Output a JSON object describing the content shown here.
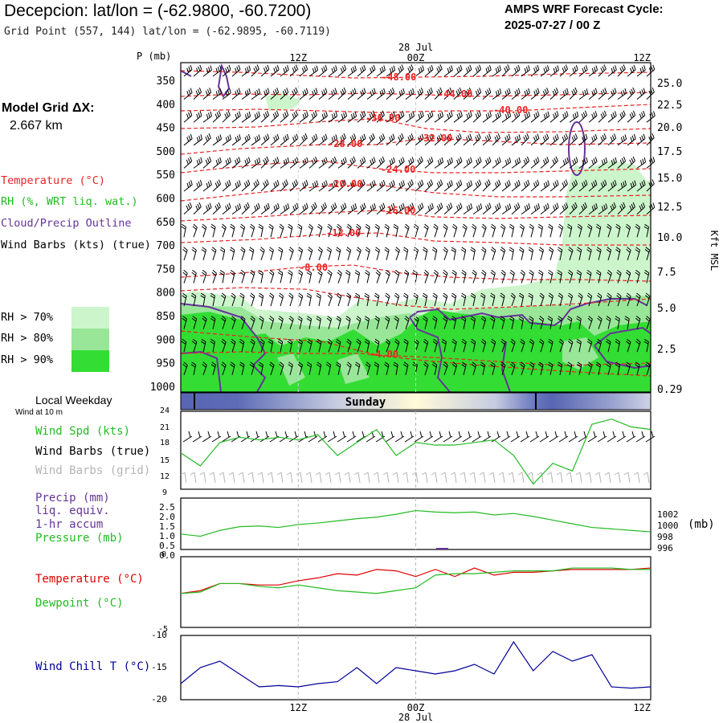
{
  "header": {
    "title": "Decepcion:  lat/lon = (-62.9800, -60.7200)",
    "subtitle": "Grid Point (557, 144) lat/lon = (-62.9895, -60.7119)",
    "cycle_line1": "AMPS WRF Forecast Cycle:",
    "cycle_line2": "2025-07-27 / 00  Z"
  },
  "left_panel": {
    "model_grid_title": "Model Grid ΔX:",
    "model_grid_value": "2.667 km",
    "legend": [
      {
        "label": "Temperature (°C)",
        "color": "#ff0000"
      },
      {
        "label": "RH (%, WRT liq. wat.)",
        "color": "#33cc33"
      },
      {
        "label": "Cloud/Precip Outline",
        "color": "#663399"
      },
      {
        "label": "Wind Barbs (kts) (true)",
        "color": "#000000"
      }
    ],
    "rh_thresholds": [
      {
        "label": "RH > 70%",
        "color": "#ccf5cc"
      },
      {
        "label": "RH > 80%",
        "color": "#99e699"
      },
      {
        "label": "RH > 90%",
        "color": "#33dd33"
      }
    ]
  },
  "time_axis": {
    "top_date": "28 Jul",
    "ticks": [
      "12Z",
      "00Z",
      "12Z"
    ],
    "bottom_date": "28 Jul"
  },
  "cross_section": {
    "pressure_label": "P (mb)",
    "pressure_levels": [
      "350",
      "400",
      "450",
      "500",
      "550",
      "600",
      "650",
      "700",
      "750",
      "800",
      "850",
      "900",
      "950",
      "1000"
    ],
    "height_label": "Kft MSL",
    "height_ticks": [
      "25.0",
      "22.5",
      "20.0",
      "17.5",
      "15.0",
      "12.5",
      "10.0",
      "7.5",
      "5.0",
      "2.5",
      "0.29"
    ],
    "isotherm_labels": [
      "-48.00",
      "-44.00",
      "-40.00",
      "-36.00",
      "-32.00",
      "-28.00",
      "-24.00",
      "-20.00",
      "-16.00",
      "-12.00",
      "-8.00",
      "-4.00"
    ]
  },
  "weekday_bar": {
    "title": "Local Weekday",
    "label": "Sunday"
  },
  "panels": {
    "wind_title": "Wind at 10 m",
    "wind_labels": [
      "Wind Spd (kts)",
      "Wind Barbs (true)",
      "Wind Barbs (grid)"
    ],
    "wind_colors": [
      "#22bb22",
      "#000000",
      "#b4b4b4"
    ],
    "wind_yticks": [
      "24",
      "21",
      "18",
      "15",
      "12",
      "9"
    ],
    "precip_labels": [
      "Precip (mm)",
      "liq. equiv.",
      "1-hr accum",
      "Pressure (mb)"
    ],
    "precip_colors": [
      "#663399",
      "#663399",
      "#663399",
      "#22bb22"
    ],
    "precip_yticks": [
      "2.5",
      "2.0",
      "1.5",
      "1.0",
      "0.5",
      "0.0",
      "0"
    ],
    "pressure_yticks": [
      "1002",
      "1000",
      "998",
      "996"
    ],
    "pressure_unit": "(mb)",
    "temp_labels": [
      "Temperature (°C)",
      "Dewpoint (°C)"
    ],
    "temp_colors": [
      "#dd0000",
      "#22bb22"
    ],
    "temp_yticks": [
      "-5"
    ],
    "chill_label": "Wind Chill T (°C)",
    "chill_color": "#000099",
    "chill_yticks": [
      "-10",
      "-15",
      "-20"
    ]
  },
  "chart_data": [
    {
      "type": "line",
      "title": "Wind Spd (kts)",
      "ylabel": "Wind Spd (kts)",
      "ylim": [
        9,
        24
      ],
      "x_hours": [
        0,
        2,
        4,
        6,
        8,
        10,
        12,
        14,
        16,
        18,
        20,
        22,
        24,
        26,
        28,
        30,
        32,
        34,
        36,
        38,
        40,
        42,
        44,
        46,
        48
      ],
      "series": [
        {
          "name": "Wind Spd (kts)",
          "values": [
            16,
            13.5,
            18,
            19,
            18.5,
            19,
            18.5,
            19.5,
            15.5,
            18,
            20.5,
            15.5,
            18,
            17.5,
            17.5,
            18,
            18.5,
            15.5,
            10,
            14,
            12.5,
            21.5,
            22.5,
            21,
            20.5
          ]
        }
      ]
    },
    {
      "type": "line",
      "title": "Pressure (mb)",
      "ylabel": "Pressure (mb)",
      "ylim": [
        996,
        1003
      ],
      "x_hours": [
        0,
        2,
        4,
        6,
        8,
        10,
        12,
        14,
        16,
        18,
        20,
        22,
        24,
        26,
        28,
        30,
        32,
        34,
        36,
        38,
        40,
        42,
        44,
        46,
        48
      ],
      "series": [
        {
          "name": "Pressure (mb)",
          "values": [
            998.1,
            997.8,
            998.6,
            999.1,
            999.2,
            999.0,
            999.4,
            999.6,
            999.9,
            1000.2,
            1000.4,
            1000.8,
            1001.3,
            1001.1,
            1001.0,
            1001.1,
            1000.7,
            1000.9,
            1000.5,
            1000.0,
            999.5,
            999.0,
            998.8,
            998.6,
            998.4
          ]
        }
      ]
    },
    {
      "type": "line",
      "title": "Temperature / Dewpoint (°C)",
      "ylabel": "°C",
      "ylim": [
        -5,
        0
      ],
      "x_hours": [
        0,
        2,
        4,
        6,
        8,
        10,
        12,
        14,
        16,
        18,
        20,
        22,
        24,
        26,
        28,
        30,
        32,
        34,
        36,
        38,
        40,
        42,
        44,
        46,
        48
      ],
      "series": [
        {
          "name": "Temperature (°C)",
          "values": [
            -2.6,
            -2.4,
            -1.9,
            -1.9,
            -2.0,
            -2.0,
            -1.7,
            -1.5,
            -1.2,
            -1.3,
            -0.9,
            -1.0,
            -1.4,
            -0.9,
            -1.4,
            -0.8,
            -1.3,
            -1.1,
            -1.1,
            -1.0,
            -0.9,
            -0.9,
            -0.9,
            -0.9,
            -0.8
          ]
        },
        {
          "name": "Dewpoint (°C)",
          "values": [
            -2.6,
            -2.5,
            -1.9,
            -1.9,
            -2.1,
            -2.2,
            -2.0,
            -2.2,
            -2.4,
            -2.5,
            -2.6,
            -2.4,
            -2.2,
            -1.3,
            -1.2,
            -1.2,
            -1.1,
            -1.0,
            -1.0,
            -1.0,
            -0.8,
            -0.8,
            -0.8,
            -0.9,
            -0.9
          ]
        }
      ]
    },
    {
      "type": "line",
      "title": "Wind Chill T (°C)",
      "ylabel": "Wind Chill T (°C)",
      "ylim": [
        -20,
        -10
      ],
      "x_hours": [
        0,
        2,
        4,
        6,
        8,
        10,
        12,
        14,
        16,
        18,
        20,
        22,
        24,
        26,
        28,
        30,
        32,
        34,
        36,
        38,
        40,
        42,
        44,
        46,
        48
      ],
      "series": [
        {
          "name": "Wind Chill T (°C)",
          "values": [
            -17.5,
            -15,
            -14,
            -16,
            -18,
            -17.8,
            -18,
            -17.5,
            -17.2,
            -15,
            -17.5,
            -15,
            -15.5,
            -16,
            -15.5,
            -14.5,
            -16,
            -11,
            -15.5,
            -12.5,
            -14,
            -13,
            -18,
            -18.2,
            -18
          ]
        }
      ]
    }
  ]
}
